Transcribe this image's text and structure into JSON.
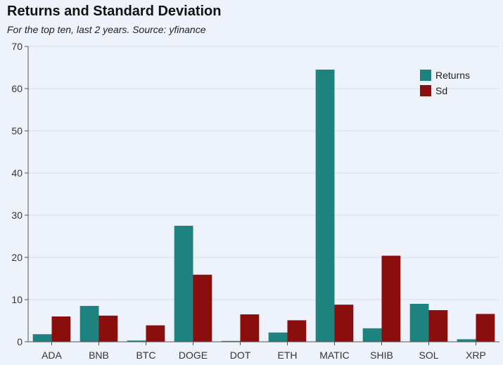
{
  "header": {
    "title": "Returns and Standard Deviation",
    "subtitle": "For the top ten, last 2 years. Source: yfinance"
  },
  "chart_data": {
    "type": "bar",
    "title": "Returns and Standard Deviation",
    "subtitle": "For the top ten, last 2 years. Source: yfinance",
    "xlabel": "",
    "ylabel": "",
    "categories": [
      "ADA",
      "BNB",
      "BTC",
      "DOGE",
      "DOT",
      "ETH",
      "MATIC",
      "SHIB",
      "SOL",
      "XRP"
    ],
    "series": [
      {
        "name": "Returns",
        "color": "#1e827f",
        "values": [
          1.8,
          8.5,
          0.3,
          27.5,
          0.2,
          2.2,
          64.5,
          3.2,
          9.0,
          0.6
        ]
      },
      {
        "name": "Sd",
        "color": "#8b0e0e",
        "values": [
          6.0,
          6.2,
          3.9,
          15.9,
          6.5,
          5.1,
          8.8,
          20.4,
          7.5,
          6.6
        ]
      }
    ],
    "ylim": [
      0,
      70
    ],
    "yticks": [
      0,
      10,
      20,
      30,
      40,
      50,
      60,
      70
    ],
    "grid": true,
    "legend_position": "top-right"
  }
}
